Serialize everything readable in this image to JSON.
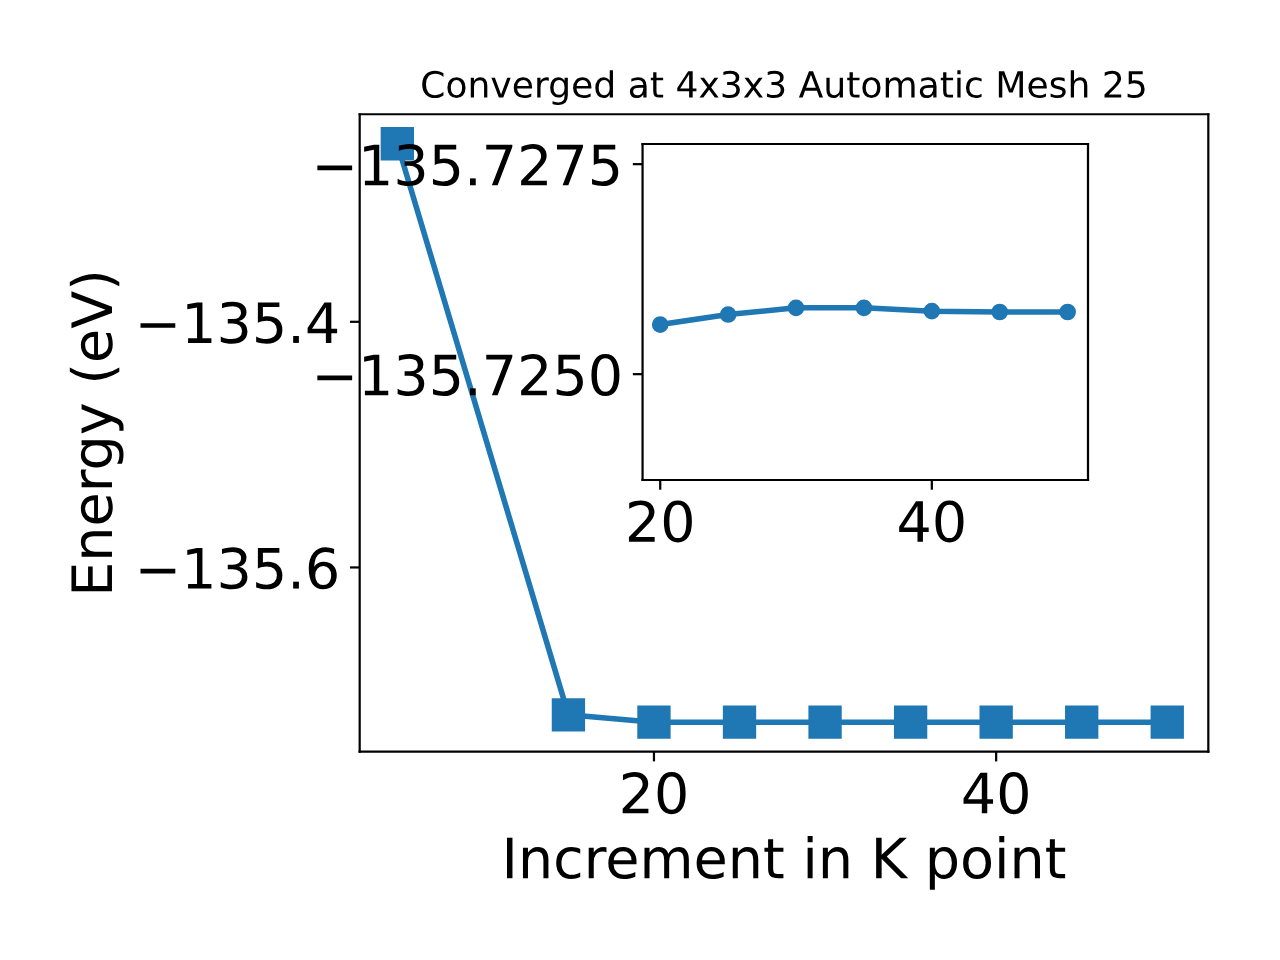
{
  "chart_data": [
    {
      "type": "line",
      "title": "Converged at 4x3x3 Automatic Mesh 25",
      "xlabel": "Increment in K point",
      "ylabel": "Energy (eV)",
      "marker": "square",
      "line_style": "solid",
      "grid": false,
      "legend": false,
      "series": [
        {
          "color": "#1f77b4",
          "x": [
            5,
            15,
            20,
            25,
            30,
            35,
            40,
            45,
            50
          ],
          "values": [
            -135.255,
            -135.72,
            -135.726,
            -135.726,
            -135.726,
            -135.726,
            -135.726,
            -135.726,
            -135.726
          ]
        }
      ],
      "xlim": [
        2.8,
        52.4
      ],
      "xticks": [
        20,
        40
      ],
      "ylim": [
        -135.75,
        -135.231
      ],
      "yticks": [
        -135.6,
        -135.4
      ]
    },
    {
      "type": "line",
      "marker": "circle",
      "line_style": "solid",
      "grid": false,
      "legend": false,
      "series": [
        {
          "color": "#1f77b4",
          "x": [
            20,
            25,
            30,
            35,
            40,
            45,
            50
          ],
          "values": [
            -135.72559,
            -135.72571,
            -135.72579,
            -135.72579,
            -135.72575,
            -135.72574,
            -135.72574
          ]
        }
      ],
      "xlim": [
        18.7,
        51.5
      ],
      "xticks": [
        20,
        40
      ],
      "ylim": [
        -135.72374,
        -135.72774
      ],
      "yticks": [
        -135.7275,
        {
          "value": -135.725,
          "label": "−135.7250"
        }
      ]
    }
  ]
}
